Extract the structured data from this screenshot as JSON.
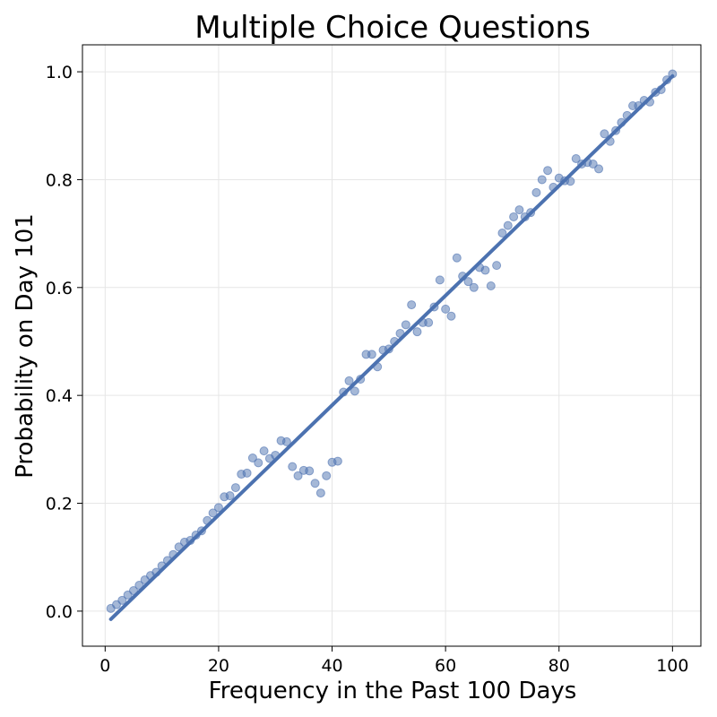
{
  "chart_data": {
    "type": "scatter",
    "title": "Multiple Choice Questions",
    "xlabel": "Frequency in the Past 100 Days",
    "ylabel": "Probability on Day 101",
    "xlim": [
      -4,
      105
    ],
    "ylim": [
      -0.065,
      1.05
    ],
    "xticks": [
      0,
      20,
      40,
      60,
      80,
      100
    ],
    "yticks": [
      0.0,
      0.2,
      0.4,
      0.6,
      0.8,
      1.0
    ],
    "xtick_labels": [
      "0",
      "20",
      "40",
      "60",
      "80",
      "100"
    ],
    "ytick_labels": [
      "0.0",
      "0.2",
      "0.4",
      "0.6",
      "0.8",
      "1.0"
    ],
    "grid": true,
    "legend": "none",
    "colors": {
      "series": "#4c72b0"
    },
    "series": [
      {
        "kind": "scatter",
        "x": [
          1,
          2,
          3,
          4,
          5,
          6,
          7,
          8,
          9,
          10,
          11,
          12,
          13,
          14,
          15,
          16,
          17,
          18,
          19,
          20,
          21,
          22,
          23,
          24,
          25,
          26,
          27,
          28,
          29,
          30,
          31,
          32,
          33,
          34,
          35,
          36,
          37,
          38,
          39,
          40,
          41,
          42,
          43,
          44,
          45,
          46,
          47,
          48,
          49,
          50,
          51,
          52,
          53,
          54,
          55,
          56,
          57,
          58,
          59,
          60,
          61,
          62,
          63,
          64,
          65,
          66,
          67,
          68,
          69,
          70,
          71,
          72,
          73,
          74,
          75,
          76,
          77,
          78,
          79,
          80,
          81,
          82,
          83,
          84,
          85,
          86,
          87,
          88,
          89,
          90,
          91,
          92,
          93,
          94,
          95,
          96,
          97,
          98,
          99,
          100
        ],
        "y": [
          0.005,
          0.012,
          0.02,
          0.03,
          0.038,
          0.048,
          0.058,
          0.066,
          0.072,
          0.084,
          0.094,
          0.105,
          0.119,
          0.128,
          0.131,
          0.141,
          0.149,
          0.168,
          0.182,
          0.192,
          0.212,
          0.214,
          0.229,
          0.254,
          0.256,
          0.284,
          0.275,
          0.297,
          0.283,
          0.289,
          0.316,
          0.314,
          0.268,
          0.251,
          0.261,
          0.26,
          0.237,
          0.219,
          0.251,
          0.276,
          0.278,
          0.406,
          0.427,
          0.408,
          0.43,
          0.476,
          0.476,
          0.453,
          0.484,
          0.486,
          0.5,
          0.515,
          0.531,
          0.568,
          0.518,
          0.535,
          0.535,
          0.564,
          0.614,
          0.56,
          0.547,
          0.655,
          0.621,
          0.611,
          0.6,
          0.637,
          0.632,
          0.603,
          0.641,
          0.701,
          0.715,
          0.731,
          0.744,
          0.731,
          0.739,
          0.776,
          0.8,
          0.817,
          0.786,
          0.803,
          0.798,
          0.797,
          0.839,
          0.829,
          0.832,
          0.829,
          0.82,
          0.885,
          0.871,
          0.891,
          0.906,
          0.919,
          0.937,
          0.937,
          0.947,
          0.944,
          0.962,
          0.967,
          0.985,
          0.996
        ]
      },
      {
        "kind": "line",
        "x": [
          1,
          100
        ],
        "y": [
          -0.015,
          0.992
        ]
      }
    ]
  }
}
